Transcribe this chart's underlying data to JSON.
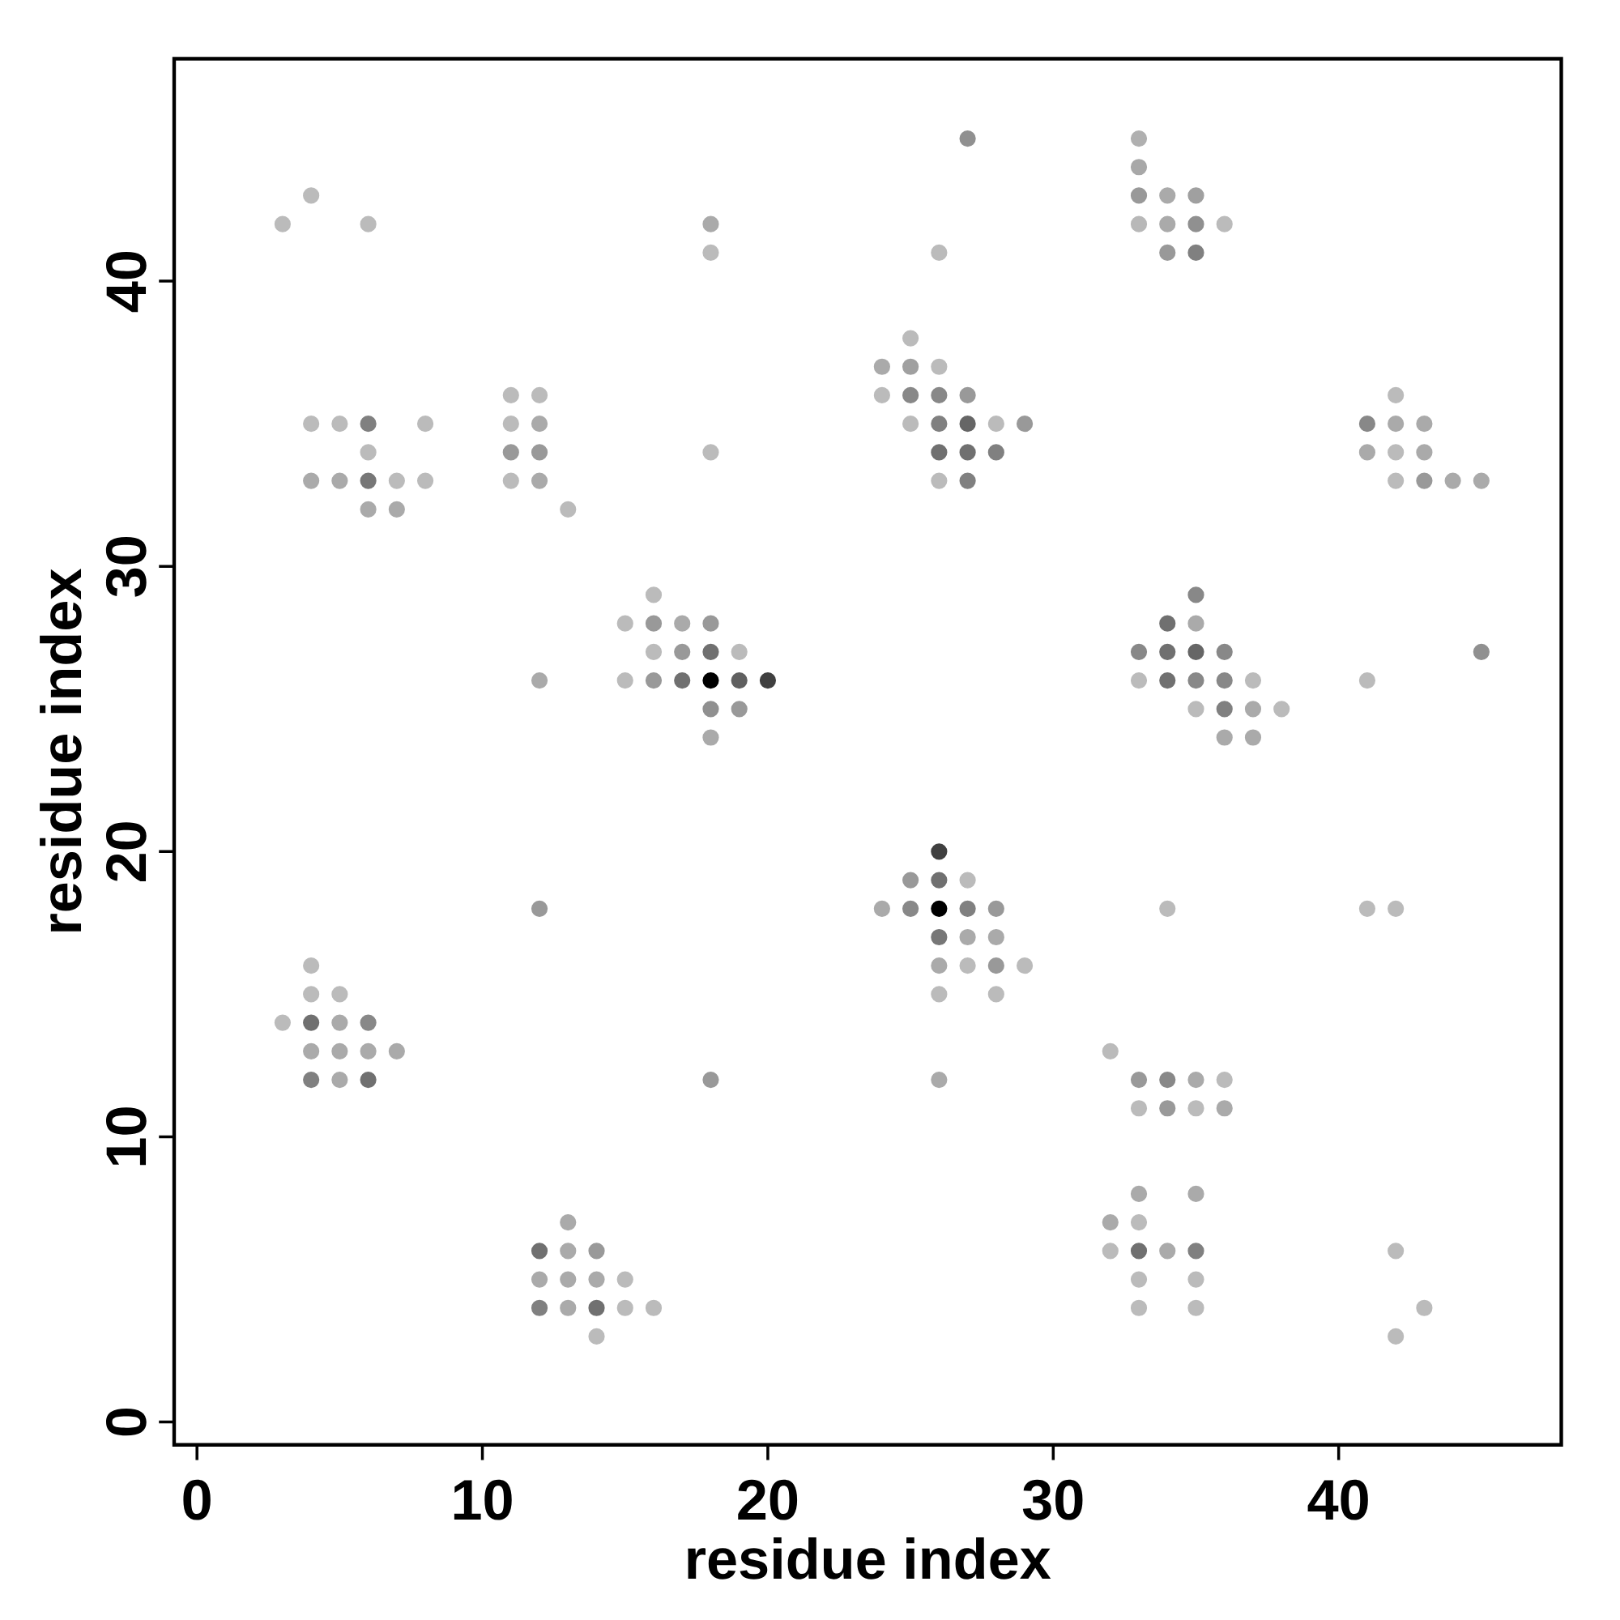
{
  "chart_data": {
    "type": "scatter",
    "xlabel": "residue index",
    "ylabel": "residue index",
    "xlim": [
      -0.8,
      47.8
    ],
    "ylim": [
      -0.8,
      47.8
    ],
    "xticks": [
      0,
      10,
      20,
      30,
      40
    ],
    "yticks": [
      0,
      10,
      20,
      30,
      40
    ],
    "grid": false,
    "series": [
      {
        "x": [
          27,
          33,
          33,
          4,
          33,
          34,
          35,
          3,
          6,
          18,
          33,
          34,
          35,
          36,
          18,
          26,
          34,
          35,
          25,
          24,
          25,
          26,
          11,
          12,
          24,
          25,
          26,
          27,
          42,
          4,
          5,
          6,
          8,
          11,
          12,
          25,
          26,
          27,
          28,
          29,
          41,
          42,
          43,
          6,
          11,
          12,
          18,
          26,
          27,
          28,
          41,
          42,
          43,
          4,
          5,
          6,
          7,
          8,
          11,
          12,
          26,
          27,
          42,
          43,
          44,
          45,
          6,
          7,
          13,
          16,
          35,
          15,
          16,
          17,
          18,
          34,
          35,
          16,
          17,
          18,
          19,
          33,
          34,
          35,
          36,
          45,
          12,
          15,
          16,
          17,
          18,
          19,
          20,
          33,
          34,
          35,
          36,
          37,
          41,
          18,
          19,
          35,
          36,
          37,
          38,
          18,
          36,
          37,
          26,
          25,
          26,
          27,
          12,
          24,
          25,
          26,
          27,
          28,
          34,
          41,
          42,
          26,
          27,
          28,
          4,
          26,
          27,
          28,
          29,
          4,
          5,
          26,
          28,
          3,
          4,
          5,
          6,
          4,
          5,
          6,
          7,
          32,
          4,
          5,
          6,
          18,
          26,
          33,
          34,
          35,
          36,
          33,
          34,
          35,
          36,
          33,
          35,
          13,
          32,
          33,
          12,
          13,
          14,
          32,
          33,
          34,
          35,
          42,
          12,
          13,
          14,
          15,
          33,
          35,
          12,
          13,
          14,
          15,
          16,
          33,
          35,
          43,
          14,
          42
        ],
        "values": [
          45,
          45,
          44,
          43,
          43,
          43,
          43,
          42,
          42,
          42,
          42,
          42,
          42,
          42,
          41,
          41,
          41,
          41,
          38,
          37,
          37,
          37,
          36,
          36,
          36,
          36,
          36,
          36,
          36,
          35,
          35,
          35,
          35,
          35,
          35,
          35,
          35,
          35,
          35,
          35,
          35,
          35,
          35,
          34,
          34,
          34,
          34,
          34,
          34,
          34,
          34,
          34,
          34,
          33,
          33,
          33,
          33,
          33,
          33,
          33,
          33,
          33,
          33,
          33,
          33,
          33,
          32,
          32,
          32,
          29,
          29,
          28,
          28,
          28,
          28,
          28,
          28,
          27,
          27,
          27,
          27,
          27,
          27,
          27,
          27,
          27,
          26,
          26,
          26,
          26,
          26,
          26,
          26,
          26,
          26,
          26,
          26,
          26,
          26,
          25,
          25,
          25,
          25,
          25,
          25,
          24,
          24,
          24,
          20,
          19,
          19,
          19,
          18,
          18,
          18,
          18,
          18,
          18,
          18,
          18,
          18,
          17,
          17,
          17,
          16,
          16,
          16,
          16,
          16,
          15,
          15,
          15,
          15,
          14,
          14,
          14,
          14,
          13,
          13,
          13,
          13,
          13,
          12,
          12,
          12,
          12,
          12,
          12,
          12,
          12,
          12,
          11,
          11,
          11,
          11,
          8,
          8,
          7,
          7,
          7,
          6,
          6,
          6,
          6,
          6,
          6,
          6,
          6,
          5,
          5,
          5,
          5,
          5,
          5,
          4,
          4,
          4,
          4,
          4,
          4,
          4,
          4,
          3,
          3
        ],
        "colors": [
          "#909090",
          "#b0b0b0",
          "#a8a8a8",
          "#bbbbbb",
          "#999999",
          "#aaaaaa",
          "#a0a0a0",
          "#bbbbbb",
          "#bbbbbb",
          "#aaaaaa",
          "#b8b8b8",
          "#aaaaaa",
          "#909090",
          "#bbbbbb",
          "#bbbbbb",
          "#bbbbbb",
          "#999999",
          "#808080",
          "#bbbbbb",
          "#aaaaaa",
          "#a0a0a0",
          "#bbbbbb",
          "#bbbbbb",
          "#bbbbbb",
          "#bbbbbb",
          "#888888",
          "#888888",
          "#999999",
          "#bbbbbb",
          "#bbbbbb",
          "#bbbbbb",
          "#808080",
          "#bbbbbb",
          "#bbbbbb",
          "#aaaaaa",
          "#bbbbbb",
          "#808080",
          "#666666",
          "#bbbbbb",
          "#999999",
          "#888888",
          "#aaaaaa",
          "#aaaaaa",
          "#bbbbbb",
          "#999999",
          "#999999",
          "#bbbbbb",
          "#707070",
          "#707070",
          "#808080",
          "#aaaaaa",
          "#bbbbbb",
          "#aaaaaa",
          "#aaaaaa",
          "#aaaaaa",
          "#777777",
          "#bbbbbb",
          "#bbbbbb",
          "#bbbbbb",
          "#aaaaaa",
          "#bbbbbb",
          "#808080",
          "#bbbbbb",
          "#999999",
          "#aaaaaa",
          "#aaaaaa",
          "#aaaaaa",
          "#aaaaaa",
          "#bbbbbb",
          "#bbbbbb",
          "#888888",
          "#bbbbbb",
          "#999999",
          "#aaaaaa",
          "#999999",
          "#707070",
          "#aaaaaa",
          "#bbbbbb",
          "#999999",
          "#707070",
          "#bbbbbb",
          "#888888",
          "#707070",
          "#666666",
          "#888888",
          "#909090",
          "#aaaaaa",
          "#bbbbbb",
          "#999999",
          "#707070",
          "#000000",
          "#606060",
          "#404040",
          "#bbbbbb",
          "#707070",
          "#888888",
          "#888888",
          "#bbbbbb",
          "#bbbbbb",
          "#909090",
          "#999999",
          "#bbbbbb",
          "#808080",
          "#aaaaaa",
          "#bbbbbb",
          "#aaaaaa",
          "#aaaaaa",
          "#aaaaaa",
          "#404040",
          "#999999",
          "#707070",
          "#bbbbbb",
          "#999999",
          "#aaaaaa",
          "#888888",
          "#000000",
          "#808080",
          "#999999",
          "#bbbbbb",
          "#bbbbbb",
          "#bbbbbb",
          "#777777",
          "#aaaaaa",
          "#aaaaaa",
          "#bbbbbb",
          "#aaaaaa",
          "#bbbbbb",
          "#999999",
          "#bbbbbb",
          "#bbbbbb",
          "#bbbbbb",
          "#bbbbbb",
          "#bbbbbb",
          "#bbbbbb",
          "#707070",
          "#aaaaaa",
          "#888888",
          "#aaaaaa",
          "#aaaaaa",
          "#aaaaaa",
          "#aaaaaa",
          "#bbbbbb",
          "#808080",
          "#aaaaaa",
          "#707070",
          "#999999",
          "#aaaaaa",
          "#999999",
          "#888888",
          "#aaaaaa",
          "#bbbbbb",
          "#bbbbbb",
          "#999999",
          "#bbbbbb",
          "#aaaaaa",
          "#aaaaaa",
          "#aaaaaa",
          "#aaaaaa",
          "#aaaaaa",
          "#bbbbbb",
          "#707070",
          "#aaaaaa",
          "#999999",
          "#bbbbbb",
          "#707070",
          "#aaaaaa",
          "#808080",
          "#bbbbbb",
          "#aaaaaa",
          "#aaaaaa",
          "#aaaaaa",
          "#bbbbbb",
          "#bbbbbb",
          "#bbbbbb",
          "#808080",
          "#aaaaaa",
          "#707070",
          "#bbbbbb",
          "#bbbbbb",
          "#bbbbbb",
          "#bbbbbb",
          "#bbbbbb",
          "#bbbbbb",
          "#bbbbbb"
        ]
      }
    ]
  }
}
